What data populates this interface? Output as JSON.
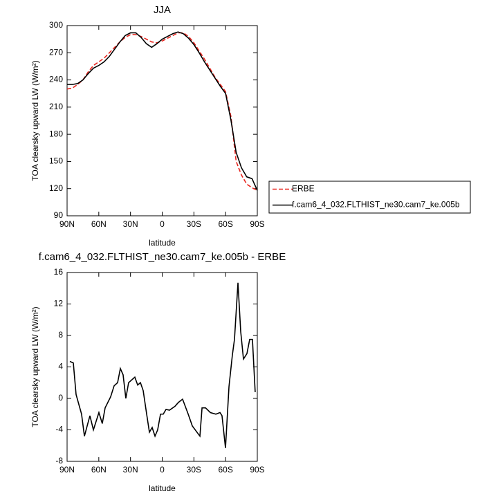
{
  "chart_data": [
    {
      "type": "line",
      "title": "JJA",
      "x_label": "latitude",
      "y_label": "TOA clearsky upward LW (W/m²)",
      "x": [
        90,
        85,
        80,
        75,
        70,
        65,
        60,
        55,
        50,
        45,
        40,
        35,
        30,
        25,
        20,
        15,
        10,
        5,
        0,
        -5,
        -10,
        -15,
        -20,
        -25,
        -30,
        -35,
        -40,
        -45,
        -50,
        -55,
        -60,
        -65,
        -70,
        -75,
        -80,
        -85,
        -90
      ],
      "series": [
        {
          "name": "ERBE",
          "color": "#e8261f",
          "dashed": true,
          "values": [
            230,
            231,
            235,
            240,
            249,
            256,
            260,
            264,
            270,
            276,
            282,
            287,
            290,
            290,
            288,
            285,
            282,
            281,
            283,
            286,
            289,
            292,
            292,
            288,
            281,
            272,
            263,
            253,
            243,
            235,
            227,
            200,
            150,
            135,
            125,
            121,
            118
          ]
        },
        {
          "name": "f.cam6_4_032.FLTHIST_ne30.cam7_ke.005b",
          "color": "#000000",
          "dashed": false,
          "values": [
            235,
            235,
            236,
            240,
            247,
            253,
            256,
            260,
            266,
            274,
            282,
            289,
            292,
            292,
            287,
            280,
            276,
            280,
            285,
            288,
            291,
            293,
            291,
            286,
            279,
            270,
            260,
            251,
            242,
            233,
            225,
            196,
            160,
            143,
            133,
            131,
            118
          ]
        }
      ],
      "xlim": [
        90,
        -90
      ],
      "xticks": [
        {
          "value": 90,
          "label": "90N"
        },
        {
          "value": 60,
          "label": "60N"
        },
        {
          "value": 30,
          "label": "30N"
        },
        0,
        {
          "value": -30,
          "label": "30S"
        },
        {
          "value": -60,
          "label": "60S"
        },
        {
          "value": -90,
          "label": "90S"
        }
      ],
      "ylim": [
        90,
        300
      ],
      "yticks": [
        90,
        120,
        150,
        180,
        210,
        240,
        270,
        300
      ],
      "legend": "right"
    },
    {
      "type": "line",
      "title": "f.cam6_4_032.FLTHIST_ne30.cam7_ke.005b - ERBE",
      "x_label": "latitude",
      "y_label": "TOA clearsky upward LW (W/m²)",
      "x": [
        87.4,
        84.1,
        81.5,
        76.3,
        73.6,
        68.4,
        65.1,
        59.9,
        56.7,
        54.0,
        48.8,
        45.5,
        42.2,
        39.6,
        37.0,
        34.4,
        31.8,
        25.9,
        23.2,
        20.6,
        18.0,
        14.7,
        12.1,
        9.5,
        6.8,
        4.3,
        1.6,
        -1.0,
        -3.6,
        -6.9,
        -12.1,
        -15.4,
        -19.3,
        -24.6,
        -28.5,
        -35.7,
        -37.7,
        -41.0,
        -45.6,
        -50.8,
        -54.7,
        -56.6,
        -59.9,
        -63.2,
        -66.4,
        -68.4,
        -71.7,
        -74.3,
        -76.9,
        -80.2,
        -82.8,
        -85.4,
        -88.0
      ],
      "values": [
        4.7,
        4.5,
        0.5,
        -2,
        -4.8,
        -2.2,
        -4,
        -1.8,
        -3.2,
        -1.2,
        0.2,
        1.6,
        2,
        3.8,
        3,
        0,
        2,
        2.7,
        1.7,
        2,
        1,
        -2,
        -4.3,
        -3.7,
        -4.8,
        -4,
        -2,
        -2,
        -1.4,
        -1.5,
        -1,
        -0.5,
        -0.1,
        -2,
        -3.5,
        -4.8,
        -1.2,
        -1.2,
        -1.8,
        -2,
        -1.8,
        -2.2,
        -6.3,
        1.5,
        5.5,
        7.5,
        14.7,
        8.5,
        5,
        5.7,
        7.5,
        7.5,
        0.8
      ],
      "color": "#000000",
      "xlim": [
        90,
        -90
      ],
      "xticks": [
        {
          "value": 90,
          "label": "90N"
        },
        {
          "value": 60,
          "label": "60N"
        },
        {
          "value": 30,
          "label": "30N"
        },
        0,
        {
          "value": -30,
          "label": "30S"
        },
        {
          "value": -60,
          "label": "60S"
        },
        {
          "value": -90,
          "label": "90S"
        }
      ],
      "ylim": [
        -8,
        16
      ],
      "yticks": [
        -8,
        -4,
        0,
        4,
        8,
        12,
        16
      ]
    }
  ]
}
